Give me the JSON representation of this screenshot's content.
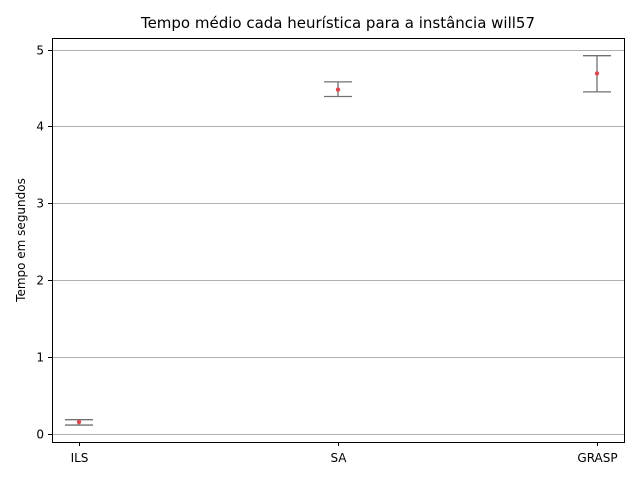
{
  "chart_data": {
    "type": "scatter",
    "title": "Tempo médio cada heurística para a instância will57",
    "xlabel": "",
    "ylabel": "Tempo em segundos",
    "categories": [
      "ILS",
      "SA",
      "GRASP"
    ],
    "ylim": [
      -0.1,
      5.15
    ],
    "yticks": [
      0,
      1,
      2,
      3,
      4,
      5
    ],
    "grid": "y",
    "series": [
      {
        "mean": [
          0.16,
          4.48,
          4.69
        ],
        "lower": [
          0.12,
          4.39,
          4.45
        ],
        "upper": [
          0.19,
          4.58,
          4.92
        ]
      }
    ],
    "colors": {
      "point": "#e0474c",
      "errorbar": "#707070",
      "grid": "#b0b0b0",
      "axis": "#000000"
    }
  }
}
